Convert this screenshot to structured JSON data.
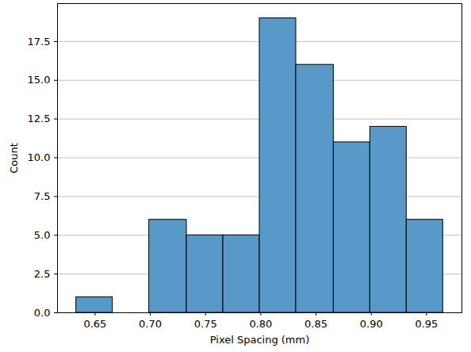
{
  "chart_data": {
    "type": "histogram",
    "xlabel": "Pixel Spacing (mm)",
    "ylabel": "Count",
    "bins": [
      0.633,
      0.666,
      0.699,
      0.733,
      0.766,
      0.799,
      0.832,
      0.866,
      0.899,
      0.932,
      0.965
    ],
    "values": [
      1,
      0,
      6,
      5,
      5,
      19,
      16,
      11,
      12,
      6
    ],
    "color": "#5899c9",
    "xlim": [
      0.616,
      0.982
    ],
    "xticks": [
      0.65,
      {
        "value": 0.7,
        "label": "0.70"
      },
      0.75,
      {
        "value": 0.8,
        "label": "0.80"
      },
      0.85,
      {
        "value": 0.9,
        "label": "0.90"
      },
      0.95
    ],
    "ylim": [
      0,
      19.95
    ],
    "yticks": [
      {
        "value": 0,
        "label": "0.0"
      },
      2.5,
      {
        "value": 5,
        "label": "5.0"
      },
      7.5,
      {
        "value": 10,
        "label": "10.0"
      },
      12.5,
      {
        "value": 15,
        "label": "15.0"
      },
      17.5
    ],
    "grid": "y"
  }
}
